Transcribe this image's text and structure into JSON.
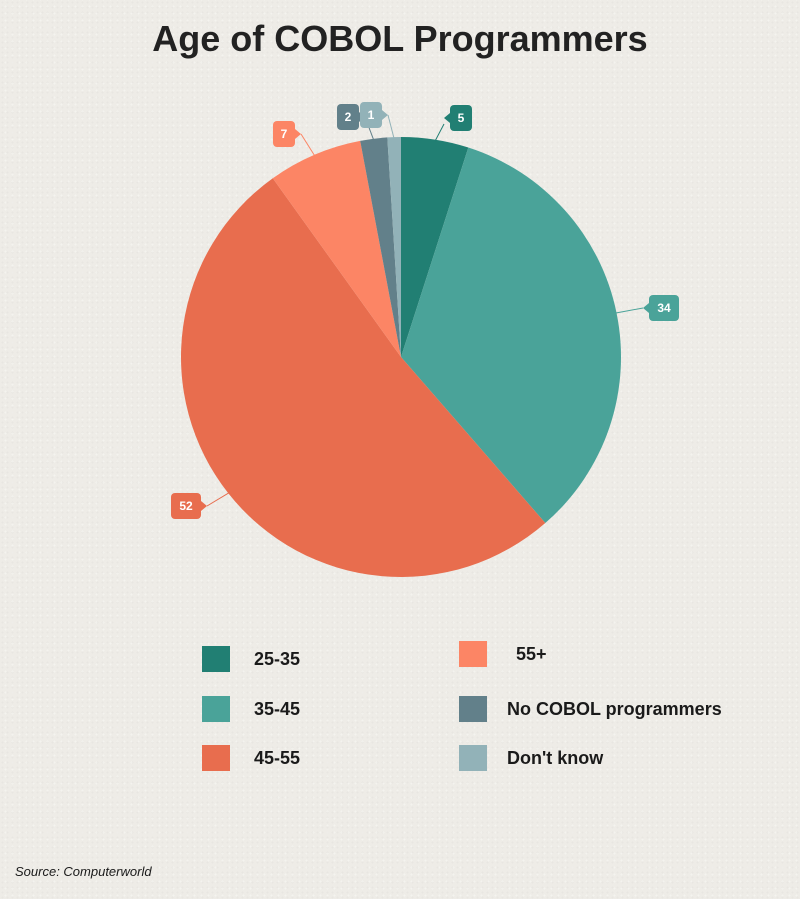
{
  "title": "Age of COBOL Programmers",
  "source": "Source: Computerworld",
  "chart_data": {
    "type": "pie",
    "title": "Age of COBOL Programmers",
    "start_angle_deg": 0,
    "direction": "clockwise",
    "slices": [
      {
        "label": "25-35",
        "value": 5,
        "color": "#217f73"
      },
      {
        "label": "35-45",
        "value": 34,
        "color": "#4aa399"
      },
      {
        "label": "45-55",
        "value": 52,
        "color": "#e86d4e"
      },
      {
        "label": "55+",
        "value": 7,
        "color": "#fc8565"
      },
      {
        "label": "No COBOL programmers",
        "value": 2,
        "color": "#62808a"
      },
      {
        "label": "Don't know",
        "value": 1,
        "color": "#92b2b8"
      }
    ],
    "legend_position": "bottom"
  }
}
